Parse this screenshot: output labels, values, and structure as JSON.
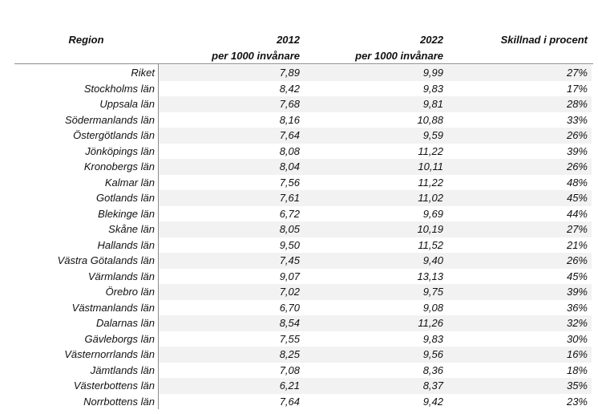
{
  "table": {
    "header": [
      "Region",
      [
        "2012",
        "per 1000 invånare"
      ],
      [
        "2022",
        "per 1000 invånare"
      ],
      "Skillnad i procent"
    ],
    "rows": [
      [
        "Riket",
        "7,89",
        "9,99",
        "27%"
      ],
      [
        "Stockholms län",
        "8,42",
        "9,83",
        "17%"
      ],
      [
        "Uppsala län",
        "7,68",
        "9,81",
        "28%"
      ],
      [
        "Södermanlands län",
        "8,16",
        "10,88",
        "33%"
      ],
      [
        "Östergötlands län",
        "7,64",
        "9,59",
        "26%"
      ],
      [
        "Jönköpings län",
        "8,08",
        "11,22",
        "39%"
      ],
      [
        "Kronobergs län",
        "8,04",
        "10,11",
        "26%"
      ],
      [
        "Kalmar län",
        "7,56",
        "11,22",
        "48%"
      ],
      [
        "Gotlands län",
        "7,61",
        "11,02",
        "45%"
      ],
      [
        "Blekinge län",
        "6,72",
        "9,69",
        "44%"
      ],
      [
        "Skåne län",
        "8,05",
        "10,19",
        "27%"
      ],
      [
        "Hallands län",
        "9,50",
        "11,52",
        "21%"
      ],
      [
        "Västra Götalands län",
        "7,45",
        "9,40",
        "26%"
      ],
      [
        "Värmlands län",
        "9,07",
        "13,13",
        "45%"
      ],
      [
        "Örebro län",
        "7,02",
        "9,75",
        "39%"
      ],
      [
        "Västmanlands län",
        "6,70",
        "9,08",
        "36%"
      ],
      [
        "Dalarnas län",
        "8,54",
        "11,26",
        "32%"
      ],
      [
        "Gävleborgs län",
        "7,55",
        "9,83",
        "30%"
      ],
      [
        "Västernorrlands län",
        "8,25",
        "9,56",
        "16%"
      ],
      [
        "Jämtlands län",
        "7,08",
        "8,36",
        "18%"
      ],
      [
        "Västerbottens län",
        "6,21",
        "8,37",
        "35%"
      ],
      [
        "Norrbottens län",
        "7,64",
        "9,42",
        "23%"
      ]
    ]
  }
}
